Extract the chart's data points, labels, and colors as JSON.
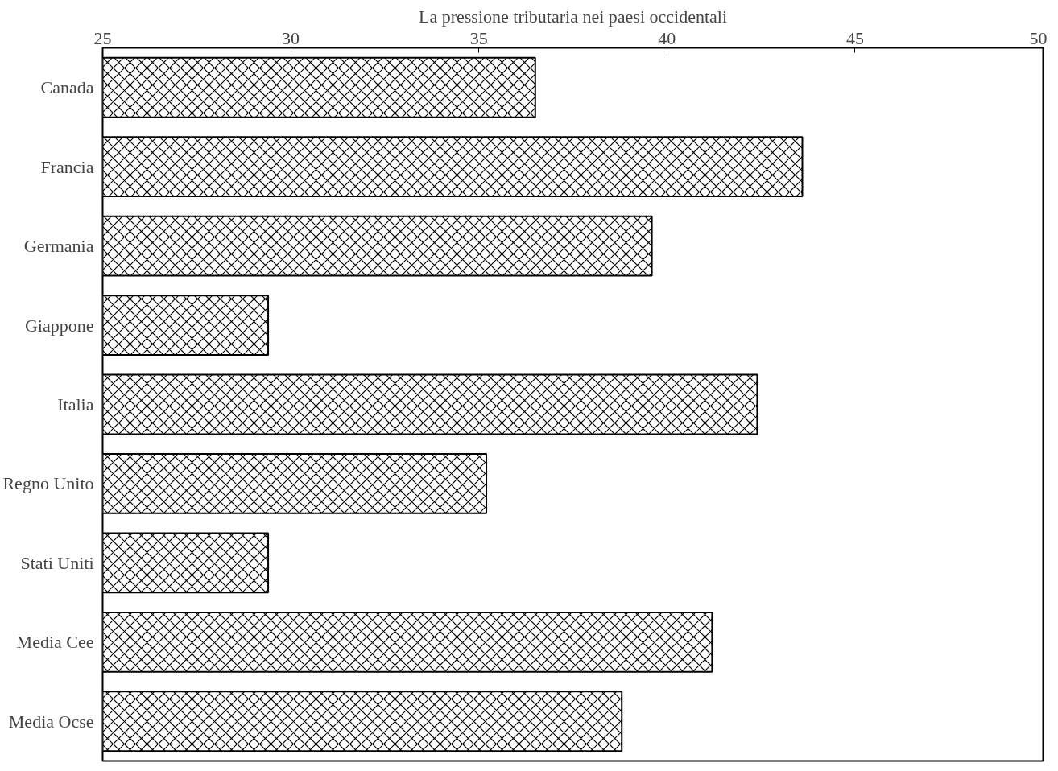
{
  "chart_data": {
    "type": "bar",
    "orientation": "horizontal",
    "title": "La pressione tributaria nei paesi occidentali",
    "categories": [
      "Canada",
      "Francia",
      "Germania",
      "Giappone",
      "Italia",
      "Regno Unito",
      "Stati Uniti",
      "Media Cee",
      "Media Ocse"
    ],
    "values": [
      36.5,
      43.6,
      39.6,
      29.4,
      42.4,
      35.2,
      29.4,
      41.2,
      38.8
    ],
    "color": "#000000",
    "xlim": [
      25,
      50
    ],
    "xticks": [
      25,
      30,
      35,
      40,
      45,
      50
    ],
    "grid": false
  }
}
